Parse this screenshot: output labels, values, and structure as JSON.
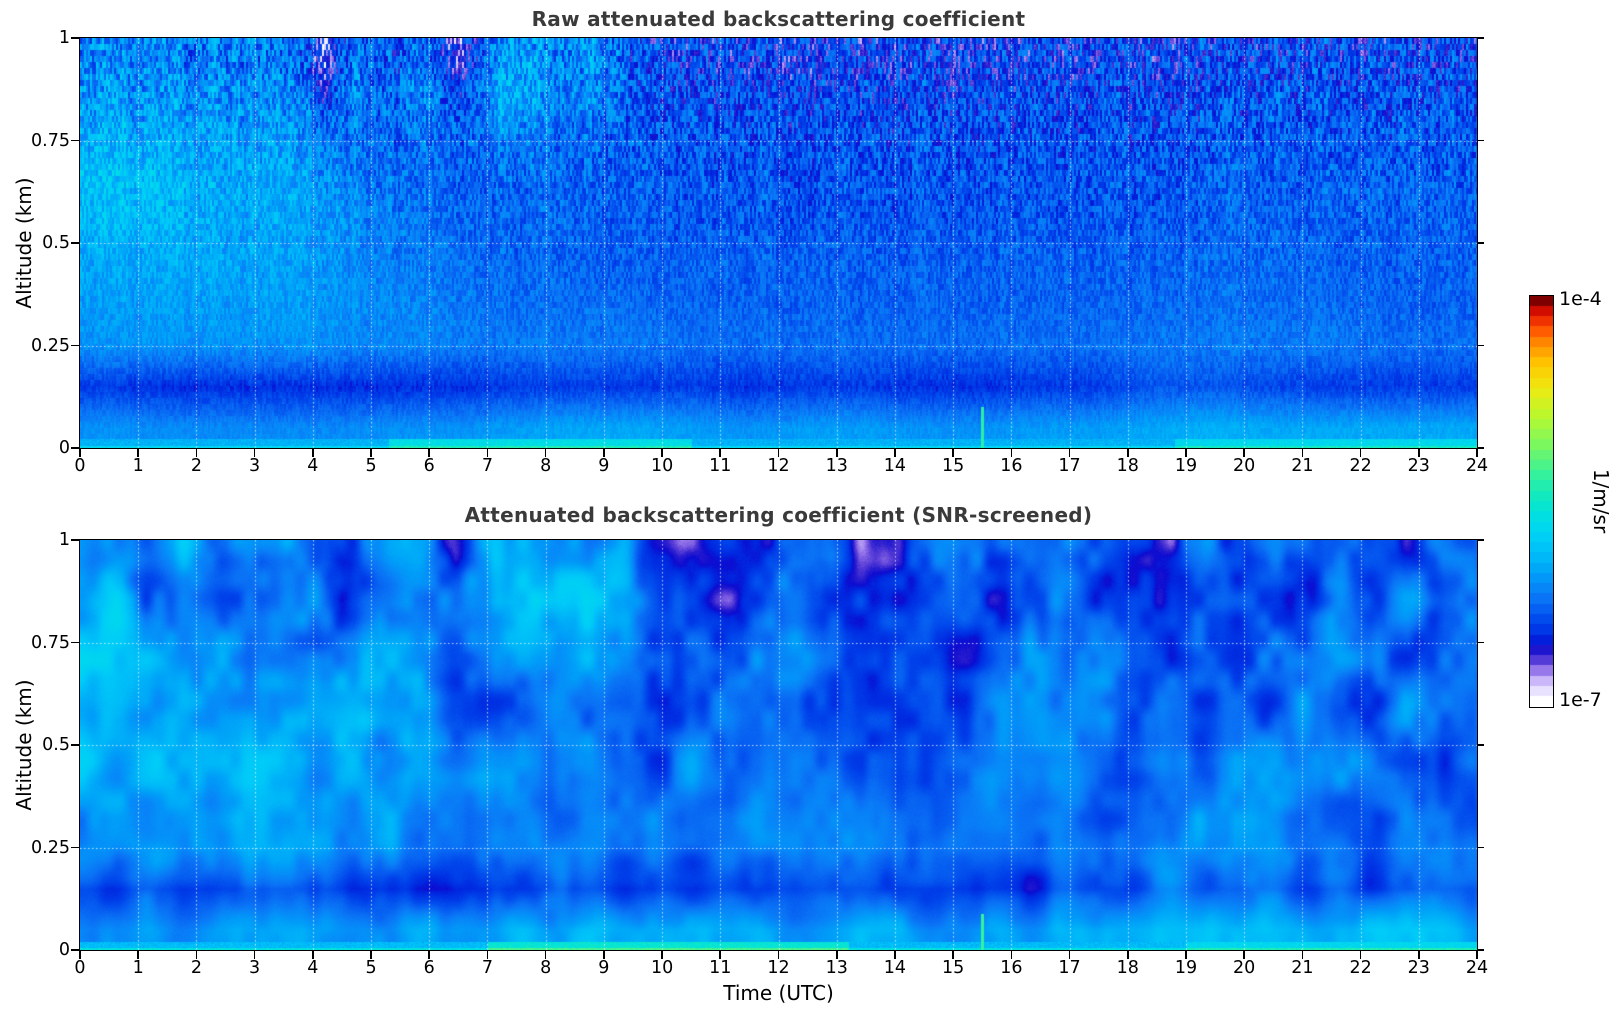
{
  "page": {
    "background": "#ffffff"
  },
  "panels": [
    {
      "id": "raw",
      "title": "Raw attenuated backscattering coefficient"
    },
    {
      "id": "screened",
      "title": "Attenuated backscattering coefficient (SNR-screened)"
    }
  ],
  "axes": {
    "x": {
      "label": "Time (UTC)",
      "min": 0,
      "max": 24,
      "ticks": [
        0,
        1,
        2,
        3,
        4,
        5,
        6,
        7,
        8,
        9,
        10,
        11,
        12,
        13,
        14,
        15,
        16,
        17,
        18,
        19,
        20,
        21,
        22,
        23,
        24
      ]
    },
    "y": {
      "label": "Altitude (km)",
      "min": 0,
      "max": 1,
      "ticks": [
        0,
        0.25,
        0.5,
        0.75,
        1
      ],
      "tick_labels": [
        "0",
        "0.25",
        "0.5",
        "0.75",
        "1"
      ]
    }
  },
  "colorbar": {
    "unit_label": "1/m/sr",
    "max_label": "1e-4",
    "min_label": "1e-7",
    "segments": 40
  },
  "style": {
    "title_color": "#3a3a3a",
    "text_color": "#000000",
    "grid_color": "rgba(255,255,255,0.75)",
    "base_field_blue": "#0a6cf5",
    "dark_band_blue": "#0038e2",
    "plume_cyan": "#00c3f8"
  },
  "chart_data": {
    "type": "heatmap",
    "title": "Attenuated backscattering coefficient (raw and SNR-screened)",
    "x": {
      "name": "Time (UTC)",
      "range": [
        0,
        24
      ],
      "grid_hour_centers_start": 0.5,
      "grid_hour_step": 1
    },
    "y": {
      "name": "Altitude (km)",
      "range": [
        0,
        1
      ],
      "grid_alt_centers": [
        0.95,
        0.85,
        0.75,
        0.65,
        0.55,
        0.45,
        0.35,
        0.25,
        0.15,
        0.05
      ]
    },
    "value": {
      "name": "attenuated backscattering coefficient",
      "unit": "1/m/sr",
      "scale": "log10",
      "range": [
        1e-07,
        0.0001
      ]
    },
    "grid_on": true,
    "colormap": {
      "stops": [
        [
          0.0,
          "#ffffff"
        ],
        [
          0.02,
          "#efeaff"
        ],
        [
          0.04,
          "#dccfff"
        ],
        [
          0.06,
          "#bda6f5"
        ],
        [
          0.08,
          "#9070e8"
        ],
        [
          0.1,
          "#5b3fd8"
        ],
        [
          0.12,
          "#2a1ecf"
        ],
        [
          0.14,
          "#0d0bd0"
        ],
        [
          0.16,
          "#0028e0"
        ],
        [
          0.19,
          "#0040ea"
        ],
        [
          0.22,
          "#0558f0"
        ],
        [
          0.25,
          "#0a70f5"
        ],
        [
          0.28,
          "#0885f8"
        ],
        [
          0.32,
          "#00a0f8"
        ],
        [
          0.36,
          "#00b8f8"
        ],
        [
          0.4,
          "#00ccf8"
        ],
        [
          0.45,
          "#00ddea"
        ],
        [
          0.5,
          "#0ae8c8"
        ],
        [
          0.57,
          "#38f29a"
        ],
        [
          0.64,
          "#7cf860"
        ],
        [
          0.71,
          "#b8f830"
        ],
        [
          0.78,
          "#eeea12"
        ],
        [
          0.84,
          "#ffc800"
        ],
        [
          0.89,
          "#ff9000"
        ],
        [
          0.93,
          "#ff5000"
        ],
        [
          0.97,
          "#e01000"
        ],
        [
          1.0,
          "#7f0000"
        ]
      ]
    },
    "panels": [
      {
        "name": "raw",
        "noise": {
          "kind": "streaky",
          "seed": 7,
          "seg": 6,
          "base_amp": 0.1,
          "alt_amp": 0.6,
          "alt_pow": 1.4,
          "fine_amp": 0.07,
          "cluster_amp": 0.14
        },
        "grid_log10": [
          [
            -6.15,
            -6.18,
            -6.2,
            -6.25,
            -6.45,
            -6.42,
            -6.38,
            -6.28,
            -6.3,
            -6.35,
            -6.45,
            -6.45,
            -6.45,
            -6.45,
            -6.42,
            -6.45,
            -6.45,
            -6.42,
            -6.45,
            -6.42,
            -6.38,
            -6.4,
            -6.4,
            -6.4
          ],
          [
            -6.05,
            -6.1,
            -6.1,
            -6.15,
            -6.35,
            -6.35,
            -6.32,
            -6.22,
            -6.25,
            -6.3,
            -6.4,
            -6.4,
            -6.4,
            -6.4,
            -6.4,
            -6.4,
            -6.4,
            -6.4,
            -6.4,
            -6.36,
            -6.32,
            -6.35,
            -6.35,
            -6.35
          ],
          [
            -5.95,
            -6.0,
            -6.05,
            -6.05,
            -6.25,
            -6.3,
            -6.3,
            -6.3,
            -6.3,
            -6.3,
            -6.36,
            -6.36,
            -6.36,
            -6.36,
            -6.36,
            -6.36,
            -6.36,
            -6.36,
            -6.36,
            -6.32,
            -6.3,
            -6.32,
            -6.32,
            -6.32
          ],
          [
            -5.85,
            -5.9,
            -6.0,
            -6.0,
            -6.15,
            -6.25,
            -6.3,
            -6.3,
            -6.3,
            -6.3,
            -6.35,
            -6.35,
            -6.35,
            -6.35,
            -6.35,
            -6.35,
            -6.35,
            -6.35,
            -6.35,
            -6.3,
            -6.3,
            -6.3,
            -6.3,
            -6.3
          ],
          [
            -5.9,
            -5.95,
            -6.0,
            -6.0,
            -6.1,
            -6.2,
            -6.28,
            -6.3,
            -6.3,
            -6.3,
            -6.34,
            -6.34,
            -6.34,
            -6.34,
            -6.34,
            -6.34,
            -6.34,
            -6.34,
            -6.34,
            -6.3,
            -6.28,
            -6.3,
            -6.3,
            -6.3
          ],
          [
            -6.0,
            -6.0,
            -6.0,
            -6.05,
            -6.1,
            -6.2,
            -6.25,
            -6.28,
            -6.3,
            -6.3,
            -6.3,
            -6.3,
            -6.3,
            -6.3,
            -6.3,
            -6.3,
            -6.3,
            -6.3,
            -6.3,
            -6.26,
            -6.26,
            -6.3,
            -6.3,
            -6.3
          ],
          [
            -6.05,
            -6.05,
            -6.05,
            -6.05,
            -6.1,
            -6.15,
            -6.2,
            -6.25,
            -6.25,
            -6.25,
            -6.3,
            -6.3,
            -6.3,
            -6.3,
            -6.3,
            -6.3,
            -6.3,
            -6.3,
            -6.28,
            -6.25,
            -6.25,
            -6.25,
            -6.3,
            -6.3
          ],
          [
            -6.1,
            -6.1,
            -6.1,
            -6.1,
            -6.14,
            -6.15,
            -6.2,
            -6.2,
            -6.2,
            -6.2,
            -6.25,
            -6.25,
            -6.25,
            -6.25,
            -6.25,
            -6.25,
            -6.25,
            -6.25,
            -6.2,
            -6.2,
            -6.2,
            -6.2,
            -6.25,
            -6.25
          ],
          [
            -6.45,
            -6.5,
            -6.5,
            -6.5,
            -6.5,
            -6.5,
            -6.5,
            -6.45,
            -6.45,
            -6.45,
            -6.45,
            -6.5,
            -6.45,
            -6.45,
            -6.5,
            -6.5,
            -6.45,
            -6.45,
            -6.35,
            -6.35,
            -6.4,
            -6.45,
            -6.45,
            -6.45
          ],
          [
            -6.1,
            -6.14,
            -6.14,
            -6.14,
            -6.14,
            -6.1,
            -6.1,
            -6.05,
            -6.0,
            -6.0,
            -6.05,
            -6.1,
            -6.05,
            -6.05,
            -6.1,
            -6.1,
            -6.05,
            -6.05,
            -6.0,
            -5.95,
            -6.0,
            -6.0,
            -6.0,
            -6.0
          ]
        ],
        "features": {
          "surface": {
            "alt": 0.022,
            "value": -5.95,
            "line_alt": 0.006,
            "line_boost": 0.25,
            "bright_zones": [
              {
                "h0": 5.3,
                "h1": 10.5,
                "boost": 0.3
              },
              {
                "h0": 18.8,
                "h1": 24,
                "boost": 0.25
              }
            ]
          },
          "spike": {
            "hour": 15.5,
            "half_width": 0.03,
            "alt_top": 0.1,
            "value": -5.35
          },
          "blobs": [
            {
              "h": 4.8,
              "a": 0.95,
              "rh": 0.4,
              "ra": 0.15,
              "d": 0.25
            },
            {
              "h": 7.5,
              "a": 0.92,
              "rh": 0.55,
              "ra": 0.18,
              "d": 0.3
            },
            {
              "h": 8.8,
              "a": 0.97,
              "rh": 0.45,
              "ra": 0.15,
              "d": 0.25
            },
            {
              "h": 5.8,
              "a": 0.9,
              "rh": 0.3,
              "ra": 0.12,
              "d": 0.2
            },
            {
              "h": 6.5,
              "a": 0.98,
              "rh": 0.25,
              "ra": 0.1,
              "d": -0.3
            },
            {
              "h": 4.2,
              "a": 0.95,
              "rh": 0.2,
              "ra": 0.12,
              "d": -0.35
            }
          ]
        }
      },
      {
        "name": "screened",
        "noise": {
          "kind": "smooth",
          "seed": 13,
          "cw": 34,
          "ch": 56,
          "cw2": 13,
          "ch2": 20,
          "amp": 0.17,
          "alt_amp": 0.22
        },
        "grid_log10": [
          [
            -6.1,
            -6.15,
            -6.2,
            -6.2,
            -6.38,
            -6.3,
            -6.25,
            -6.15,
            -6.2,
            -6.25,
            -6.35,
            -6.4,
            -6.4,
            -6.4,
            -6.38,
            -6.4,
            -6.4,
            -6.38,
            -6.4,
            -6.38,
            -6.32,
            -6.35,
            -6.35,
            -6.35
          ],
          [
            -6.0,
            -6.08,
            -6.1,
            -6.1,
            -6.3,
            -6.28,
            -6.22,
            -6.08,
            -6.12,
            -6.2,
            -6.35,
            -6.35,
            -6.35,
            -6.35,
            -6.35,
            -6.35,
            -6.35,
            -6.35,
            -6.35,
            -6.32,
            -6.3,
            -6.3,
            -6.3,
            -6.3
          ],
          [
            -5.9,
            -5.95,
            -6.0,
            -6.0,
            -6.2,
            -6.25,
            -6.25,
            -6.25,
            -6.25,
            -6.25,
            -6.32,
            -6.32,
            -6.32,
            -6.32,
            -6.32,
            -6.32,
            -6.32,
            -6.32,
            -6.3,
            -6.28,
            -6.26,
            -6.28,
            -6.28,
            -6.28
          ],
          [
            -5.8,
            -5.85,
            -5.95,
            -5.95,
            -6.1,
            -6.2,
            -6.25,
            -6.25,
            -6.25,
            -6.25,
            -6.3,
            -6.3,
            -6.3,
            -6.3,
            -6.3,
            -6.3,
            -6.3,
            -6.3,
            -6.3,
            -6.28,
            -6.25,
            -6.28,
            -6.28,
            -6.28
          ],
          [
            -5.85,
            -5.9,
            -5.95,
            -5.95,
            -6.05,
            -6.15,
            -6.22,
            -6.25,
            -6.25,
            -6.25,
            -6.3,
            -6.3,
            -6.3,
            -6.3,
            -6.3,
            -6.3,
            -6.3,
            -6.3,
            -6.3,
            -6.28,
            -6.24,
            -6.28,
            -6.28,
            -6.28
          ],
          [
            -5.95,
            -5.95,
            -5.95,
            -6.0,
            -6.05,
            -6.15,
            -6.2,
            -6.22,
            -6.25,
            -6.25,
            -6.25,
            -6.25,
            -6.25,
            -6.25,
            -6.25,
            -6.25,
            -6.25,
            -6.25,
            -6.25,
            -6.22,
            -6.2,
            -6.25,
            -6.28,
            -6.28
          ],
          [
            -6.0,
            -6.0,
            -6.0,
            -6.0,
            -6.05,
            -6.1,
            -6.15,
            -6.2,
            -6.2,
            -6.2,
            -6.24,
            -6.24,
            -6.24,
            -6.24,
            -6.24,
            -6.24,
            -6.24,
            -6.24,
            -6.22,
            -6.2,
            -6.2,
            -6.2,
            -6.24,
            -6.24
          ],
          [
            -6.05,
            -6.05,
            -6.05,
            -6.05,
            -6.1,
            -6.1,
            -6.15,
            -6.15,
            -6.15,
            -6.15,
            -6.2,
            -6.2,
            -6.2,
            -6.2,
            -6.2,
            -6.2,
            -6.2,
            -6.2,
            -6.15,
            -6.15,
            -6.15,
            -6.15,
            -6.2,
            -6.2
          ],
          [
            -6.4,
            -6.45,
            -6.45,
            -6.45,
            -6.45,
            -6.45,
            -6.45,
            -6.4,
            -6.4,
            -6.4,
            -6.4,
            -6.45,
            -6.4,
            -6.4,
            -6.45,
            -6.45,
            -6.4,
            -6.4,
            -6.3,
            -6.3,
            -6.35,
            -6.4,
            -6.4,
            -6.4
          ],
          [
            -6.05,
            -6.1,
            -6.1,
            -6.1,
            -6.1,
            -6.05,
            -6.05,
            -6.0,
            -5.95,
            -5.95,
            -6.0,
            -6.05,
            -6.0,
            -6.0,
            -6.05,
            -6.05,
            -6.0,
            -6.0,
            -5.95,
            -5.9,
            -5.95,
            -5.95,
            -5.95,
            -5.95
          ]
        ],
        "features": {
          "surface": {
            "alt": 0.02,
            "value": -5.9,
            "line_alt": 0.006,
            "line_boost": 0.3,
            "bright_zones": [
              {
                "h0": 7.0,
                "h1": 13.2,
                "boost": 0.35
              },
              {
                "h0": 19,
                "h1": 24,
                "boost": 0.2
              }
            ]
          },
          "spike": {
            "hour": 15.5,
            "half_width": 0.03,
            "alt_top": 0.09,
            "value": -5.3
          },
          "blobs": [
            {
              "h": 4.5,
              "a": 0.92,
              "rh": 0.35,
              "ra": 0.22,
              "d": -0.25
            },
            {
              "h": 6.3,
              "a": 0.9,
              "rh": 0.3,
              "ra": 0.18,
              "d": -0.15
            },
            {
              "h": 9.9,
              "a": 0.95,
              "rh": 0.5,
              "ra": 0.15,
              "d": -0.18
            },
            {
              "h": 0.3,
              "a": 0.98,
              "rh": 0.3,
              "ra": 0.1,
              "d": -0.15
            },
            {
              "h": 13.6,
              "a": 0.95,
              "rh": 0.8,
              "ra": 0.12,
              "d": -0.12
            },
            {
              "h": 21.2,
              "a": 0.95,
              "rh": 0.5,
              "ra": 0.12,
              "d": -0.1
            },
            {
              "h": 8.3,
              "a": 0.92,
              "rh": 0.7,
              "ra": 0.2,
              "d": 0.3
            },
            {
              "h": 5.6,
              "a": 0.72,
              "rh": 0.5,
              "ra": 0.28,
              "d": 0.15
            },
            {
              "h": 9.3,
              "a": 0.98,
              "rh": 0.3,
              "ra": 0.1,
              "d": 0.25
            }
          ]
        }
      }
    ]
  }
}
